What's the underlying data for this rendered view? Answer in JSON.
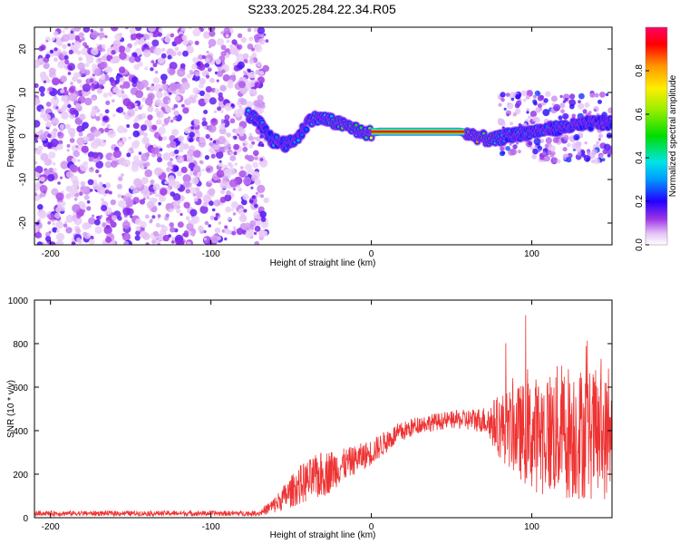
{
  "chart_data": [
    {
      "type": "heatmap",
      "title": "S233.2025.284.22.34.R05",
      "xlabel": "Height of straight line (km)",
      "ylabel": "Frequency (Hz)",
      "xlim": [
        -210,
        150
      ],
      "ylim": [
        -25,
        25
      ],
      "xticks": [
        -200,
        -100,
        0,
        100
      ],
      "yticks": [
        -20,
        -10,
        0,
        10,
        20
      ],
      "colorbar": {
        "label": "Normalized spectral amplitude",
        "range": [
          0,
          1
        ],
        "ticks": [
          "0.0",
          "0.2",
          "0.4",
          "0.6",
          "0.8"
        ]
      },
      "noise_region_x": [
        -210,
        -65
      ],
      "ridge": {
        "description_points": [
          {
            "x": -77,
            "y": 5,
            "amp": 0.35
          },
          {
            "x": -70,
            "y": 3,
            "amp": 0.3
          },
          {
            "x": -62,
            "y": -1,
            "amp": 0.3
          },
          {
            "x": -52,
            "y": -2,
            "amp": 0.3
          },
          {
            "x": -45,
            "y": 0,
            "amp": 0.3
          },
          {
            "x": -38,
            "y": 4,
            "amp": 0.35
          },
          {
            "x": -30,
            "y": 4,
            "amp": 0.35
          },
          {
            "x": -22,
            "y": 3,
            "amp": 0.5
          },
          {
            "x": -12,
            "y": 2,
            "amp": 0.45
          },
          {
            "x": -5,
            "y": 0.5,
            "amp": 0.5
          },
          {
            "x": 5,
            "y": 1,
            "amp": 0.95
          },
          {
            "x": 30,
            "y": 1,
            "amp": 0.95
          },
          {
            "x": 55,
            "y": 1,
            "amp": 0.9
          },
          {
            "x": 65,
            "y": 0,
            "amp": 0.75
          },
          {
            "x": 75,
            "y": -1,
            "amp": 0.5
          },
          {
            "x": 85,
            "y": 0,
            "amp": 0.3
          },
          {
            "x": 100,
            "y": 1,
            "amp": 0.25
          },
          {
            "x": 120,
            "y": 2,
            "amp": 0.25
          },
          {
            "x": 140,
            "y": 3,
            "amp": 0.2
          }
        ]
      }
    },
    {
      "type": "line",
      "xlabel": "Height of straight line (km)",
      "ylabel": "SNR (10 * v/v)",
      "xlim": [
        -210,
        150
      ],
      "ylim": [
        0,
        1000
      ],
      "xticks": [
        -200,
        -100,
        0,
        100
      ],
      "yticks": [
        0,
        200,
        400,
        600,
        800,
        1000
      ],
      "color": "#ee3333",
      "series": [
        {
          "name": "SNR",
          "envelope": [
            {
              "x": -210,
              "mean": 20,
              "noise": 12
            },
            {
              "x": -70,
              "mean": 20,
              "noise": 12
            },
            {
              "x": -60,
              "mean": 60,
              "noise": 40
            },
            {
              "x": -45,
              "mean": 150,
              "noise": 90
            },
            {
              "x": -30,
              "mean": 200,
              "noise": 110
            },
            {
              "x": -15,
              "mean": 250,
              "noise": 70
            },
            {
              "x": 0,
              "mean": 300,
              "noise": 60
            },
            {
              "x": 15,
              "mean": 380,
              "noise": 50
            },
            {
              "x": 30,
              "mean": 430,
              "noise": 40
            },
            {
              "x": 50,
              "mean": 450,
              "noise": 40
            },
            {
              "x": 70,
              "mean": 450,
              "noise": 60
            },
            {
              "x": 80,
              "mean": 420,
              "noise": 150
            },
            {
              "x": 100,
              "mean": 380,
              "noise": 260
            },
            {
              "x": 120,
              "mean": 400,
              "noise": 320
            },
            {
              "x": 140,
              "mean": 380,
              "noise": 300
            },
            {
              "x": 150,
              "mean": 360,
              "noise": 280
            }
          ]
        }
      ]
    }
  ]
}
